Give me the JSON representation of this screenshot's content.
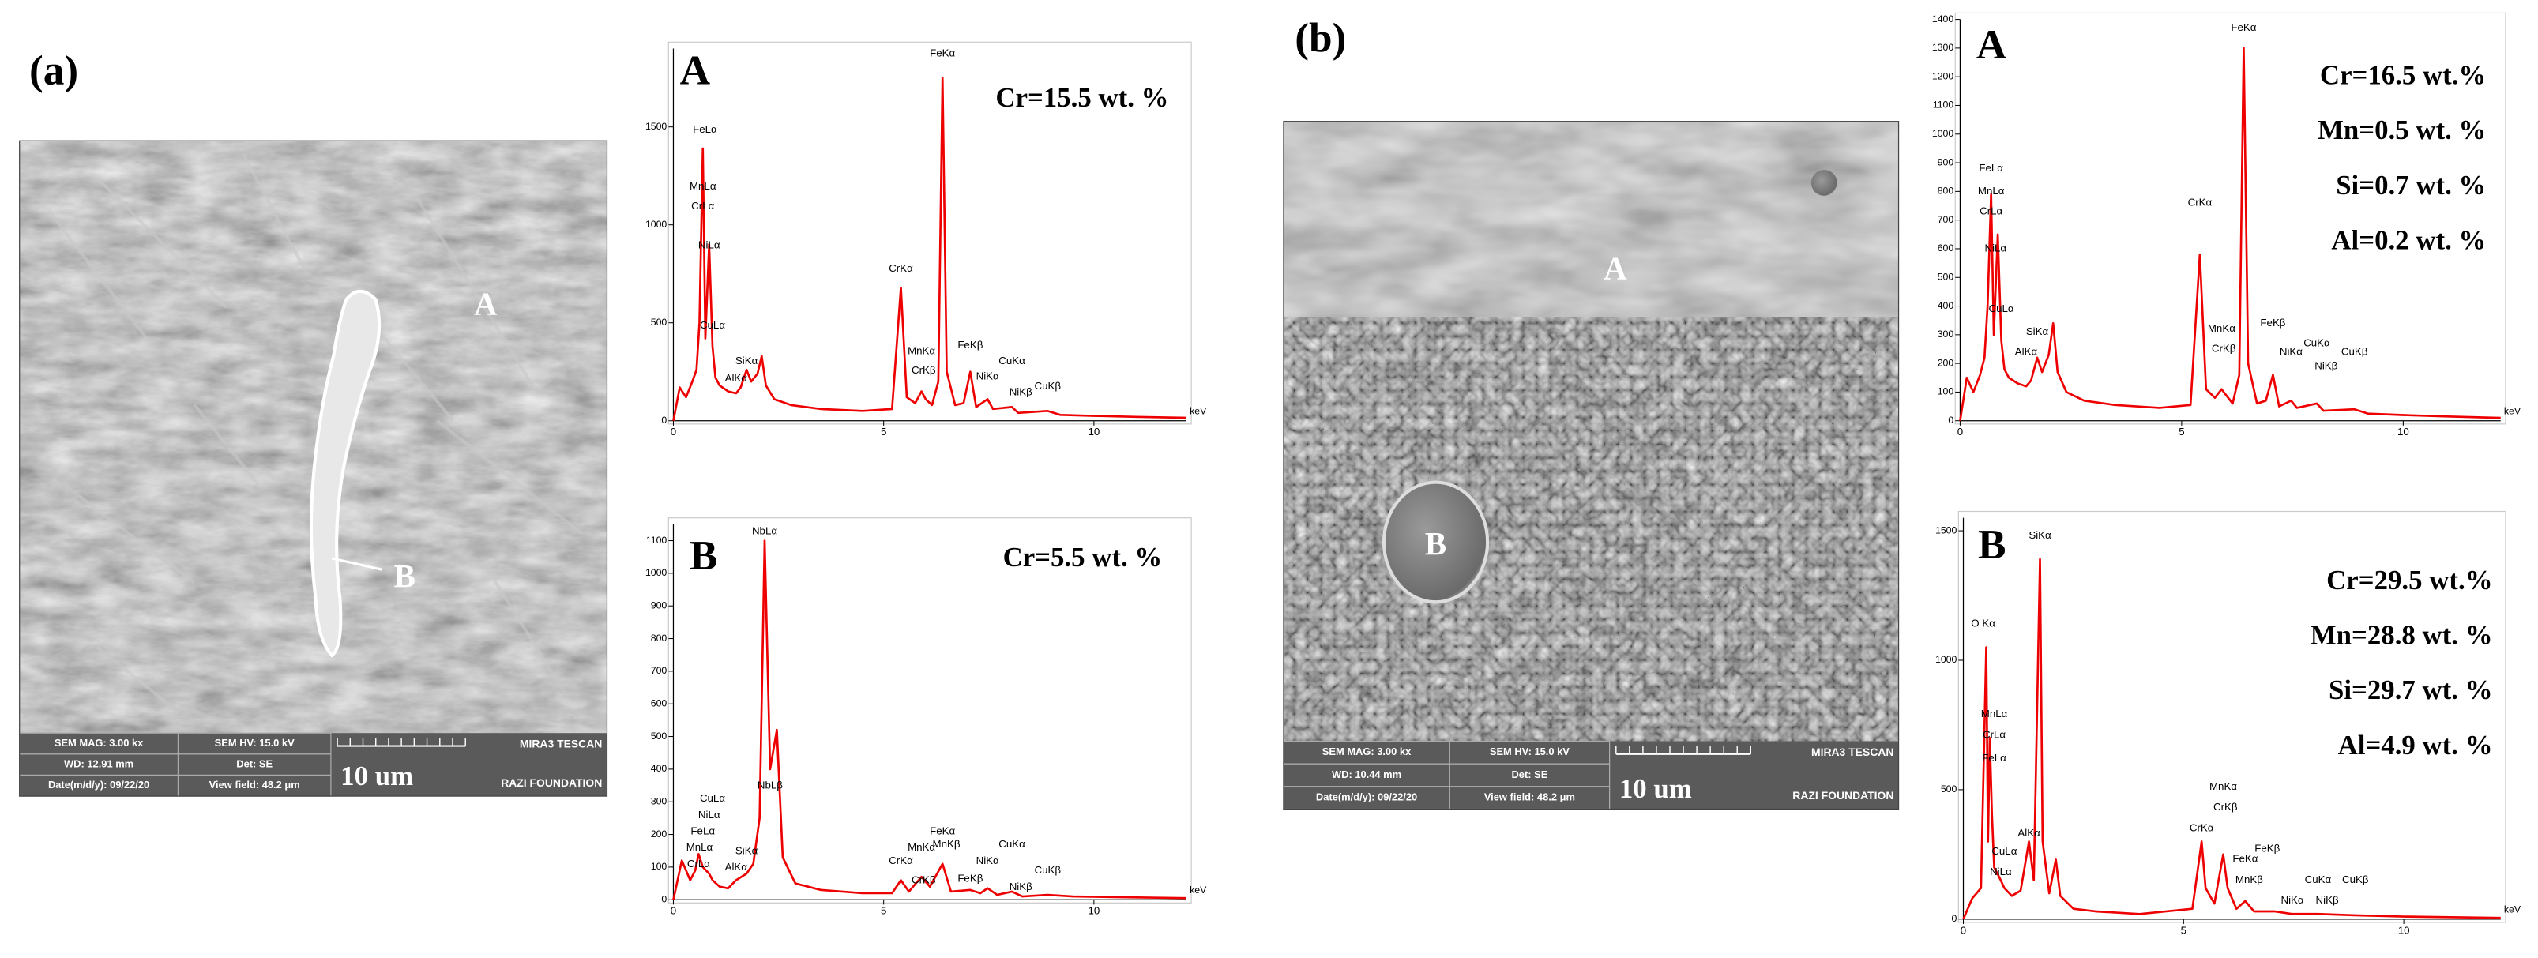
{
  "chart_data": [
    {
      "type": "line",
      "title": "A",
      "color": "#ee0000",
      "x_label": "keV",
      "xlim": [
        0,
        12.2
      ],
      "xticks": [
        0,
        5,
        10
      ],
      "ylim": [
        0,
        1900
      ],
      "yticks": [
        0,
        500,
        1000,
        1500
      ],
      "x": [
        0,
        0.15,
        0.3,
        0.45,
        0.55,
        0.62,
        0.7,
        0.76,
        0.85,
        0.93,
        1.0,
        1.1,
        1.3,
        1.49,
        1.6,
        1.74,
        1.85,
        2.0,
        2.1,
        2.2,
        2.4,
        2.8,
        3.5,
        4.5,
        5.2,
        5.41,
        5.55,
        5.75,
        5.9,
        6.0,
        6.15,
        6.3,
        6.4,
        6.5,
        6.7,
        6.9,
        7.06,
        7.2,
        7.47,
        7.6,
        8.05,
        8.2,
        8.9,
        9.2,
        10,
        11,
        12.2
      ],
      "values": [
        0,
        170,
        120,
        200,
        260,
        500,
        1390,
        420,
        900,
        380,
        220,
        180,
        150,
        140,
        170,
        260,
        200,
        240,
        330,
        180,
        110,
        80,
        60,
        50,
        60,
        680,
        120,
        90,
        150,
        110,
        80,
        200,
        1750,
        250,
        80,
        90,
        250,
        70,
        110,
        60,
        70,
        40,
        50,
        30,
        25,
        20,
        15
      ],
      "annotations": [
        {
          "text": "FeLα",
          "x": 0.75,
          "y": 1470
        },
        {
          "text": "MnLα",
          "x": 0.7,
          "y": 1180
        },
        {
          "text": "CrLα",
          "x": 0.7,
          "y": 1080
        },
        {
          "text": "NiLα",
          "x": 0.85,
          "y": 880
        },
        {
          "text": "CuLα",
          "x": 0.93,
          "y": 470
        },
        {
          "text": "SiKα",
          "x": 1.74,
          "y": 290
        },
        {
          "text": "AlKα",
          "x": 1.49,
          "y": 200
        },
        {
          "text": "CrKα",
          "x": 5.41,
          "y": 760
        },
        {
          "text": "MnKα",
          "x": 5.9,
          "y": 340
        },
        {
          "text": "CrKβ",
          "x": 5.95,
          "y": 240
        },
        {
          "text": "FeKα",
          "x": 6.4,
          "y": 1860
        },
        {
          "text": "FeKβ",
          "x": 7.06,
          "y": 370
        },
        {
          "text": "NiKα",
          "x": 7.47,
          "y": 210
        },
        {
          "text": "NiKβ",
          "x": 8.26,
          "y": 130
        },
        {
          "text": "CuKα",
          "x": 8.05,
          "y": 290
        },
        {
          "text": "CuKβ",
          "x": 8.9,
          "y": 160
        }
      ],
      "composition": [
        "Cr=15.5 wt. %"
      ]
    },
    {
      "type": "line",
      "title": "B",
      "color": "#ee0000",
      "x_label": "keV",
      "xlim": [
        0,
        12.2
      ],
      "xticks": [
        0,
        5,
        10
      ],
      "ylim": [
        0,
        1150
      ],
      "yticks": [
        0,
        100,
        200,
        300,
        400,
        500,
        600,
        700,
        800,
        900,
        1000,
        1100
      ],
      "x": [
        0,
        0.2,
        0.4,
        0.52,
        0.6,
        0.7,
        0.85,
        0.93,
        1.1,
        1.3,
        1.49,
        1.74,
        1.9,
        2.05,
        2.17,
        2.3,
        2.46,
        2.6,
        2.9,
        3.5,
        4.5,
        5.2,
        5.41,
        5.6,
        5.9,
        6.1,
        6.4,
        6.6,
        7.06,
        7.3,
        7.47,
        7.7,
        8.05,
        8.3,
        8.9,
        9.5,
        10.5,
        12.2
      ],
      "values": [
        0,
        120,
        60,
        90,
        140,
        100,
        80,
        60,
        40,
        35,
        60,
        80,
        110,
        250,
        1100,
        400,
        520,
        130,
        50,
        30,
        20,
        20,
        60,
        25,
        70,
        40,
        110,
        25,
        30,
        20,
        35,
        15,
        25,
        10,
        15,
        10,
        8,
        5
      ],
      "annotations": [
        {
          "text": "NbLα",
          "x": 2.17,
          "y": 1120
        },
        {
          "text": "NbLβ",
          "x": 2.3,
          "y": 340
        },
        {
          "text": "CuLα",
          "x": 0.93,
          "y": 300
        },
        {
          "text": "NiLα",
          "x": 0.85,
          "y": 250
        },
        {
          "text": "FeLα",
          "x": 0.7,
          "y": 200
        },
        {
          "text": "MnLα",
          "x": 0.62,
          "y": 150
        },
        {
          "text": "CrLα",
          "x": 0.6,
          "y": 100
        },
        {
          "text": "SiKα",
          "x": 1.74,
          "y": 140
        },
        {
          "text": "AlKα",
          "x": 1.49,
          "y": 90
        },
        {
          "text": "CrKα",
          "x": 5.41,
          "y": 110
        },
        {
          "text": "CrKβ",
          "x": 5.95,
          "y": 50
        },
        {
          "text": "MnKα",
          "x": 5.9,
          "y": 150
        },
        {
          "text": "FeKα",
          "x": 6.4,
          "y": 200
        },
        {
          "text": "MnKβ",
          "x": 6.49,
          "y": 160
        },
        {
          "text": "FeKβ",
          "x": 7.06,
          "y": 55
        },
        {
          "text": "NiKα",
          "x": 7.47,
          "y": 110
        },
        {
          "text": "CuKα",
          "x": 8.05,
          "y": 160
        },
        {
          "text": "NiKβ",
          "x": 8.26,
          "y": 30
        },
        {
          "text": "CuKβ",
          "x": 8.9,
          "y": 80
        }
      ],
      "composition": [
        "Cr=5.5 wt. %"
      ]
    },
    {
      "type": "line",
      "title": "A",
      "color": "#ee0000",
      "x_label": "keV",
      "xlim": [
        0,
        12.2
      ],
      "xticks": [
        0,
        5,
        10
      ],
      "ylim": [
        0,
        1400
      ],
      "yticks": [
        0,
        100,
        200,
        300,
        400,
        500,
        600,
        700,
        800,
        900,
        1000,
        1100,
        1200,
        1300,
        1400
      ],
      "x": [
        0,
        0.15,
        0.3,
        0.45,
        0.55,
        0.62,
        0.7,
        0.76,
        0.85,
        0.93,
        1.0,
        1.1,
        1.3,
        1.49,
        1.6,
        1.74,
        1.85,
        2.0,
        2.1,
        2.2,
        2.4,
        2.8,
        3.5,
        4.5,
        5.2,
        5.41,
        5.55,
        5.75,
        5.9,
        6.0,
        6.15,
        6.3,
        6.4,
        6.5,
        6.7,
        6.9,
        7.06,
        7.2,
        7.47,
        7.6,
        8.05,
        8.2,
        8.9,
        9.2,
        10,
        11,
        12.2
      ],
      "values": [
        0,
        150,
        100,
        160,
        220,
        400,
        790,
        300,
        650,
        280,
        180,
        150,
        130,
        120,
        140,
        220,
        170,
        230,
        340,
        170,
        100,
        70,
        55,
        45,
        55,
        580,
        110,
        80,
        110,
        90,
        60,
        160,
        1300,
        200,
        60,
        70,
        160,
        50,
        70,
        45,
        60,
        35,
        40,
        25,
        20,
        15,
        10
      ],
      "annotations": [
        {
          "text": "FeLα",
          "x": 0.7,
          "y": 870
        },
        {
          "text": "MnLα",
          "x": 0.7,
          "y": 790
        },
        {
          "text": "CrLα",
          "x": 0.7,
          "y": 720
        },
        {
          "text": "NiLα",
          "x": 0.8,
          "y": 590
        },
        {
          "text": "CuLα",
          "x": 0.93,
          "y": 380
        },
        {
          "text": "SiKα",
          "x": 1.74,
          "y": 300
        },
        {
          "text": "AlKα",
          "x": 1.49,
          "y": 230
        },
        {
          "text": "CrKα",
          "x": 5.41,
          "y": 750
        },
        {
          "text": "MnKα",
          "x": 5.9,
          "y": 310
        },
        {
          "text": "CrKβ",
          "x": 5.95,
          "y": 240
        },
        {
          "text": "FeKα",
          "x": 6.4,
          "y": 1360
        },
        {
          "text": "FeKβ",
          "x": 7.06,
          "y": 330
        },
        {
          "text": "NiKα",
          "x": 7.47,
          "y": 230
        },
        {
          "text": "NiKβ",
          "x": 8.26,
          "y": 180
        },
        {
          "text": "CuKα",
          "x": 8.05,
          "y": 260
        },
        {
          "text": "CuKβ",
          "x": 8.9,
          "y": 230
        }
      ],
      "composition": [
        "Cr=16.5 wt.%",
        "Mn=0.5 wt. %",
        "Si=0.7 wt. %",
        "Al=0.2 wt. %"
      ]
    },
    {
      "type": "line",
      "title": "B",
      "color": "#ee0000",
      "x_label": "keV",
      "xlim": [
        0,
        12.2
      ],
      "xticks": [
        0,
        5,
        10
      ],
      "ylim": [
        0,
        1550
      ],
      "yticks": [
        0,
        500,
        1000,
        1500
      ],
      "x": [
        0,
        0.2,
        0.4,
        0.52,
        0.56,
        0.6,
        0.65,
        0.7,
        0.85,
        0.93,
        1.1,
        1.3,
        1.49,
        1.6,
        1.74,
        1.8,
        1.95,
        2.1,
        2.2,
        2.5,
        3,
        4,
        5.2,
        5.41,
        5.5,
        5.7,
        5.9,
        6.0,
        6.2,
        6.4,
        6.6,
        7.06,
        7.47,
        8.05,
        8.9,
        10,
        12.2
      ],
      "values": [
        0,
        80,
        120,
        1050,
        300,
        700,
        400,
        200,
        150,
        120,
        90,
        110,
        300,
        150,
        1390,
        300,
        100,
        230,
        90,
        40,
        30,
        20,
        40,
        300,
        120,
        60,
        250,
        120,
        40,
        70,
        30,
        30,
        20,
        20,
        15,
        10,
        5
      ],
      "annotations": [
        {
          "text": "O Kα",
          "x": 0.45,
          "y": 1130
        },
        {
          "text": "SiKα",
          "x": 1.74,
          "y": 1470
        },
        {
          "text": "MnLα",
          "x": 0.7,
          "y": 780
        },
        {
          "text": "CrLα",
          "x": 0.7,
          "y": 700
        },
        {
          "text": "FeLα",
          "x": 0.7,
          "y": 610
        },
        {
          "text": "CuLα",
          "x": 0.93,
          "y": 250
        },
        {
          "text": "NiLα",
          "x": 0.85,
          "y": 170
        },
        {
          "text": "AlKα",
          "x": 1.49,
          "y": 320
        },
        {
          "text": "CrKα",
          "x": 5.41,
          "y": 340
        },
        {
          "text": "MnKα",
          "x": 5.9,
          "y": 500
        },
        {
          "text": "CrKβ",
          "x": 5.95,
          "y": 420
        },
        {
          "text": "FeKα",
          "x": 6.4,
          "y": 220
        },
        {
          "text": "FeKβ",
          "x": 6.9,
          "y": 260
        },
        {
          "text": "MnKβ",
          "x": 6.49,
          "y": 140
        },
        {
          "text": "NiKα",
          "x": 7.47,
          "y": 60
        },
        {
          "text": "NiKβ",
          "x": 8.26,
          "y": 60
        },
        {
          "text": "CuKα",
          "x": 8.05,
          "y": 140
        },
        {
          "text": "CuKβ",
          "x": 8.9,
          "y": 140
        }
      ],
      "composition": [
        "Cr=29.5 wt.%",
        "Mn=28.8 wt. %",
        "Si=29.7 wt. %",
        "Al=4.9 wt. %"
      ]
    }
  ],
  "sem_images": [
    {
      "panel_label": "(a)",
      "regions": [
        "A",
        "B"
      ],
      "info": [
        [
          "SEM MAG: 3.00 kx",
          "SEM HV: 15.0 kV"
        ],
        [
          "WD: 12.91 mm",
          "Det: SE"
        ],
        [
          "Date(m/d/y): 09/22/20",
          "View field: 48.2 μm"
        ]
      ],
      "scale_bar": "10 um",
      "brand": [
        "MIRA3 TESCAN",
        "RAZI FOUNDATION"
      ]
    },
    {
      "panel_label": "(b)",
      "regions": [
        "A",
        "B"
      ],
      "info": [
        [
          "SEM MAG: 3.00 kx",
          "SEM HV: 15.0 kV"
        ],
        [
          "WD: 10.44 mm",
          "Det: SE"
        ],
        [
          "Date(m/d/y): 09/22/20",
          "View field: 48.2 μm"
        ]
      ],
      "scale_bar": "10 um",
      "brand": [
        "MIRA3 TESCAN",
        "RAZI FOUNDATION"
      ]
    }
  ]
}
